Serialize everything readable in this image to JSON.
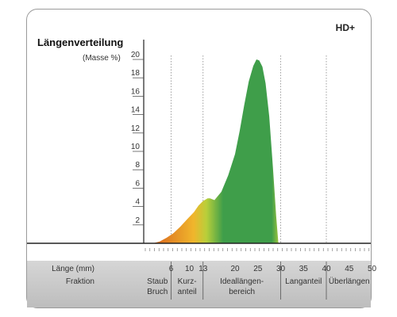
{
  "badge": "HD+",
  "chart_data": {
    "type": "area",
    "title": "Längenverteilung",
    "ylabel": "(Masse %)",
    "xlabel": "Länge (mm)",
    "ylim": [
      0,
      21
    ],
    "yticks": [
      2,
      4,
      6,
      8,
      10,
      12,
      14,
      16,
      18,
      20
    ],
    "xticks": [
      6,
      10,
      13,
      20,
      25,
      30,
      35,
      40,
      45,
      50
    ],
    "grid": "vertical dotted at fraction boundaries",
    "fraction_row_label": "Fraktion",
    "fractions": [
      {
        "lines": [
          "Staub",
          "Bruch"
        ],
        "from": 0,
        "to": 6
      },
      {
        "lines": [
          "Kurz-",
          "anteil"
        ],
        "from": 6,
        "to": 13
      },
      {
        "lines": [
          "Ideallängen-",
          "bereich"
        ],
        "from": 13,
        "to": 30
      },
      {
        "lines": [
          "Langanteil"
        ],
        "from": 30,
        "to": 40
      },
      {
        "lines": [
          "Überlängen"
        ],
        "from": 40,
        "to": 50
      }
    ],
    "boundaries": [
      6,
      13,
      30,
      40
    ],
    "x": [
      2,
      3.5,
      5,
      6.5,
      8,
      9.5,
      11,
      12,
      13,
      14,
      14.5,
      15.5,
      17,
      18.5,
      20,
      21,
      22,
      23,
      24,
      24.7,
      25.3,
      26,
      26.7,
      27.5,
      28.3,
      29,
      29.5
    ],
    "y": [
      0,
      0.2,
      0.6,
      1.1,
      1.8,
      2.6,
      3.4,
      4.1,
      4.6,
      4.9,
      4.9,
      4.7,
      5.6,
      7.4,
      9.7,
      12.2,
      15.0,
      17.6,
      19.3,
      20.0,
      19.9,
      19.2,
      17.4,
      13.8,
      8.3,
      3.0,
      0
    ],
    "colors": {
      "start": "#d9651f",
      "mid": "#f0b62c",
      "bright": "#b8cf3a",
      "main": "#3f9e4a"
    }
  }
}
